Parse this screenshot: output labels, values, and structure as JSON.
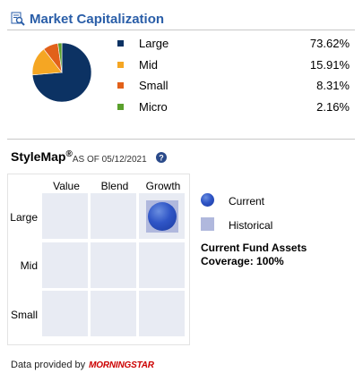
{
  "market_cap": {
    "title": "Market Capitalization",
    "icon": "magnifier-chart-icon",
    "items": [
      {
        "label": "Large",
        "value": "73.62%",
        "pct": 73.62,
        "color": "#0c3263"
      },
      {
        "label": "Mid",
        "value": "15.91%",
        "pct": 15.91,
        "color": "#f5a623"
      },
      {
        "label": "Small",
        "value": "8.31%",
        "pct": 8.31,
        "color": "#e2611a"
      },
      {
        "label": "Micro",
        "value": "2.16%",
        "pct": 2.16,
        "color": "#5aa02c"
      }
    ]
  },
  "stylemap": {
    "title": "StyleMap",
    "reg": "®",
    "as_of": "AS OF 05/12/2021",
    "columns": [
      "Value",
      "Blend",
      "Growth"
    ],
    "rows": [
      "Large",
      "Mid",
      "Small"
    ],
    "current_cell": {
      "row": "Large",
      "column": "Growth"
    },
    "legend_current": "Current",
    "legend_historical": "Historical",
    "assets_line1": "Current Fund Assets",
    "assets_line2": "Coverage: 100%",
    "colors": {
      "cell": "#e8ebf3",
      "historical": "#b0b8dd",
      "current": "#2f55c6"
    }
  },
  "footer": {
    "provided_by": "Data provided by",
    "logo_text": "MORNINGSTAR"
  }
}
